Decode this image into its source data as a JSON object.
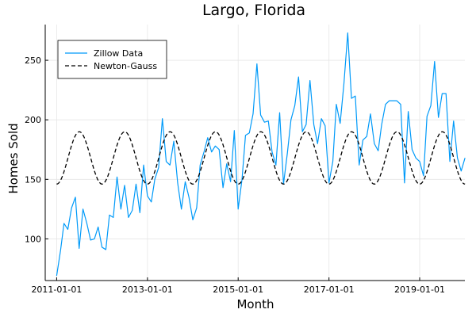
{
  "chart_data": {
    "type": "line",
    "title": "Largo, Florida",
    "xlabel": "Month",
    "ylabel": "Homes Sold",
    "x_ticks": [
      "2011-01-01",
      "2013-01-01",
      "2015-01-01",
      "2017-01-01",
      "2019-01-01"
    ],
    "y_ticks": [
      100,
      150,
      200,
      250
    ],
    "xlim": [
      "2010-10-01",
      "2019-12-31"
    ],
    "ylim": [
      65,
      280
    ],
    "grid": true,
    "legend_position": "top-left",
    "series": [
      {
        "name": "Zillow Data",
        "color": "#009af9",
        "style": "solid",
        "points": [
          [
            "2011-01-01",
            69
          ],
          [
            "2011-02-01",
            90
          ],
          [
            "2011-03-01",
            113
          ],
          [
            "2011-04-01",
            108
          ],
          [
            "2011-05-01",
            126
          ],
          [
            "2011-06-01",
            135
          ],
          [
            "2011-07-01",
            92
          ],
          [
            "2011-08-01",
            125
          ],
          [
            "2011-09-01",
            113
          ],
          [
            "2011-10-01",
            99
          ],
          [
            "2011-11-01",
            100
          ],
          [
            "2011-12-01",
            110
          ],
          [
            "2012-01-01",
            93
          ],
          [
            "2012-02-01",
            91
          ],
          [
            "2012-03-01",
            120
          ],
          [
            "2012-04-01",
            118
          ],
          [
            "2012-05-01",
            152
          ],
          [
            "2012-06-01",
            125
          ],
          [
            "2012-07-01",
            145
          ],
          [
            "2012-08-01",
            118
          ],
          [
            "2012-09-01",
            124
          ],
          [
            "2012-10-01",
            146
          ],
          [
            "2012-11-01",
            122
          ],
          [
            "2012-12-01",
            162
          ],
          [
            "2013-01-01",
            136
          ],
          [
            "2013-02-01",
            131
          ],
          [
            "2013-03-01",
            150
          ],
          [
            "2013-04-01",
            160
          ],
          [
            "2013-05-01",
            201
          ],
          [
            "2013-06-01",
            165
          ],
          [
            "2013-07-01",
            162
          ],
          [
            "2013-08-01",
            182
          ],
          [
            "2013-09-01",
            147
          ],
          [
            "2013-10-01",
            125
          ],
          [
            "2013-11-01",
            148
          ],
          [
            "2013-12-01",
            135
          ],
          [
            "2014-01-01",
            116
          ],
          [
            "2014-02-01",
            126
          ],
          [
            "2014-03-01",
            162
          ],
          [
            "2014-04-01",
            173
          ],
          [
            "2014-05-01",
            185
          ],
          [
            "2014-06-01",
            173
          ],
          [
            "2014-07-01",
            178
          ],
          [
            "2014-08-01",
            175
          ],
          [
            "2014-09-01",
            143
          ],
          [
            "2014-10-01",
            163
          ],
          [
            "2014-11-01",
            148
          ],
          [
            "2014-12-01",
            191
          ],
          [
            "2015-01-01",
            125
          ],
          [
            "2015-02-01",
            150
          ],
          [
            "2015-03-01",
            187
          ],
          [
            "2015-04-01",
            189
          ],
          [
            "2015-05-01",
            205
          ],
          [
            "2015-06-01",
            247
          ],
          [
            "2015-07-01",
            204
          ],
          [
            "2015-08-01",
            198
          ],
          [
            "2015-09-01",
            199
          ],
          [
            "2015-10-01",
            173
          ],
          [
            "2015-11-01",
            162
          ],
          [
            "2015-12-01",
            206
          ],
          [
            "2016-01-01",
            146
          ],
          [
            "2016-02-01",
            172
          ],
          [
            "2016-03-01",
            200
          ],
          [
            "2016-04-01",
            212
          ],
          [
            "2016-05-01",
            236
          ],
          [
            "2016-06-01",
            190
          ],
          [
            "2016-07-01",
            196
          ],
          [
            "2016-08-01",
            233
          ],
          [
            "2016-09-01",
            196
          ],
          [
            "2016-10-01",
            180
          ],
          [
            "2016-11-01",
            201
          ],
          [
            "2016-12-01",
            195
          ],
          [
            "2017-01-01",
            147
          ],
          [
            "2017-02-01",
            165
          ],
          [
            "2017-03-01",
            213
          ],
          [
            "2017-04-01",
            197
          ],
          [
            "2017-05-01",
            230
          ],
          [
            "2017-06-01",
            273
          ],
          [
            "2017-07-01",
            218
          ],
          [
            "2017-08-01",
            220
          ],
          [
            "2017-09-01",
            162
          ],
          [
            "2017-10-01",
            183
          ],
          [
            "2017-11-01",
            186
          ],
          [
            "2017-12-01",
            205
          ],
          [
            "2018-01-01",
            180
          ],
          [
            "2018-02-01",
            174
          ],
          [
            "2018-03-01",
            196
          ],
          [
            "2018-04-01",
            213
          ],
          [
            "2018-05-01",
            216
          ],
          [
            "2018-06-01",
            216
          ],
          [
            "2018-07-01",
            216
          ],
          [
            "2018-08-01",
            213
          ],
          [
            "2018-09-01",
            147
          ],
          [
            "2018-10-01",
            207
          ],
          [
            "2018-11-01",
            175
          ],
          [
            "2018-12-01",
            168
          ],
          [
            "2019-01-01",
            165
          ],
          [
            "2019-02-01",
            153
          ],
          [
            "2019-03-01",
            203
          ],
          [
            "2019-04-01",
            212
          ],
          [
            "2019-05-01",
            249
          ],
          [
            "2019-06-01",
            202
          ],
          [
            "2019-07-01",
            222
          ],
          [
            "2019-08-01",
            222
          ],
          [
            "2019-09-01",
            165
          ],
          [
            "2019-10-01",
            199
          ],
          [
            "2019-11-01",
            168
          ],
          [
            "2019-12-01",
            157
          ],
          [
            "2020-01-01",
            168
          ]
        ]
      },
      {
        "name": "Newton-Gauss",
        "color": "#000000",
        "style": "dashed",
        "model": {
          "mean": 168,
          "amplitude": 22,
          "period_months": 12,
          "peak_month": 6
        }
      }
    ]
  }
}
